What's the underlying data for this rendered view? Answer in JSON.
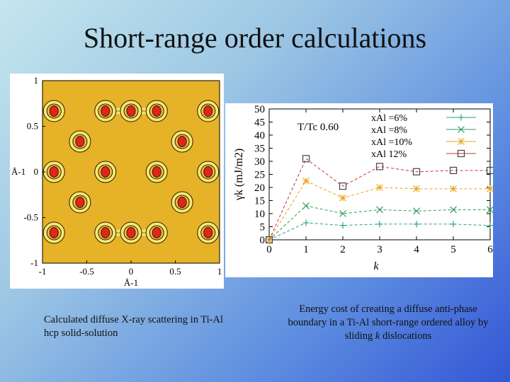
{
  "slide": {
    "title": "Short-range order calculations",
    "caption_left": "Calculated diffuse X-ray scattering in Ti-Al hcp solid-solution",
    "caption_right_parts": [
      "Energy cost of creating a diffuse anti-phase boundary in a Ti-Al short-range ordered alloy by sliding ",
      "k",
      " dislocations"
    ]
  },
  "chart_data": [
    {
      "type": "heatmap",
      "description_colors": {
        "background": "#e6b227",
        "contour": "#2a1c08",
        "ring": "#f5e870",
        "peak": "#e0261b"
      },
      "xlabel": "Å-1",
      "ylabel": "Å-1",
      "xlim": [
        -1,
        1
      ],
      "ylim": [
        -1,
        1
      ],
      "xticks": [
        "-1",
        "-0.5",
        "0",
        "0.5",
        "1"
      ],
      "yticks": [
        "1",
        "0.5",
        "0",
        "-0.5",
        "-1"
      ],
      "peaks": [
        {
          "x": 0.0,
          "y": 0.667
        },
        {
          "x": -0.577,
          "y": 0.333
        },
        {
          "x": 0.577,
          "y": 0.333
        },
        {
          "x": -0.577,
          "y": -0.333
        },
        {
          "x": 0.577,
          "y": -0.333
        },
        {
          "x": 0.0,
          "y": -0.667
        },
        {
          "x": -0.29,
          "y": 0.0
        },
        {
          "x": 0.29,
          "y": 0.0
        },
        {
          "x": -0.87,
          "y": 0.0
        },
        {
          "x": 0.87,
          "y": 0.0
        },
        {
          "x": -0.29,
          "y": 0.667
        },
        {
          "x": 0.29,
          "y": 0.667
        },
        {
          "x": -0.29,
          "y": -0.667
        },
        {
          "x": 0.29,
          "y": -0.667
        },
        {
          "x": -0.87,
          "y": 0.667
        },
        {
          "x": 0.87,
          "y": 0.667
        },
        {
          "x": -0.87,
          "y": -0.667
        },
        {
          "x": 0.87,
          "y": -0.667
        }
      ]
    },
    {
      "type": "line",
      "title": "T/Tc 0.60",
      "xlabel": "k",
      "ylabel": "γk (mJ/m2)",
      "xlim": [
        0,
        6
      ],
      "ylim": [
        0,
        50
      ],
      "xticks": [
        0,
        1,
        2,
        3,
        4,
        5,
        6
      ],
      "yticks": [
        0,
        5,
        10,
        15,
        20,
        25,
        30,
        35,
        40,
        45,
        50
      ],
      "grid": false,
      "legend_position": "top-right",
      "x": [
        0,
        1,
        2,
        3,
        4,
        5,
        6
      ],
      "series": [
        {
          "name": "xAl =6%",
          "marker": "plus",
          "color": "#2aa08a",
          "values": [
            0,
            6.5,
            5.5,
            6,
            6,
            6,
            5.5
          ]
        },
        {
          "name": "xAl =8%",
          "marker": "cross",
          "color": "#2e9c5a",
          "values": [
            0,
            13,
            10,
            11.5,
            11,
            11.5,
            11.5
          ]
        },
        {
          "name": "xAl =10%",
          "marker": "star",
          "color": "#e6a417",
          "values": [
            0,
            22.5,
            16,
            20,
            19.5,
            19.5,
            19.5
          ]
        },
        {
          "name": "xAl 12%",
          "marker": "square",
          "color": "#d03030",
          "values": [
            0,
            31,
            20.5,
            28,
            26,
            26.5,
            26.5
          ]
        }
      ]
    }
  ]
}
